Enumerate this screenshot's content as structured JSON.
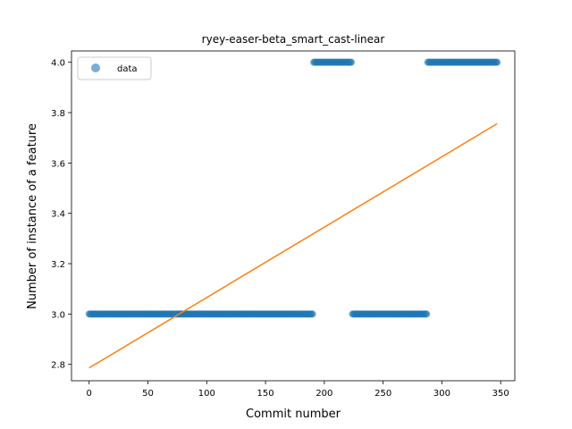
{
  "chart_data": {
    "type": "scatter",
    "title": "ryey-easer-beta_smart_cast-linear",
    "xlabel": "Commit number",
    "ylabel": "Number of instance of a feature",
    "xlim": [
      -15,
      362
    ],
    "ylim": [
      2.735,
      4.045
    ],
    "xticks": [
      0,
      50,
      100,
      150,
      200,
      250,
      300,
      350
    ],
    "yticks": [
      2.8,
      3.0,
      3.2,
      3.4,
      3.6,
      3.8,
      4.0
    ],
    "ytick_labels": [
      "2.8",
      "3.0",
      "3.2",
      "3.4",
      "3.6",
      "3.8",
      "4.0"
    ],
    "grid": false,
    "legend": {
      "position": "upper-left",
      "entries": [
        "data"
      ]
    },
    "data_color": "#1f77b4",
    "fit_color": "#ff7f0e",
    "data_segments": [
      {
        "x_start": 0,
        "x_end": 190,
        "y": 3.0
      },
      {
        "x_start": 191,
        "x_end": 223,
        "y": 4.0
      },
      {
        "x_start": 224,
        "x_end": 287,
        "y": 3.0
      },
      {
        "x_start": 288,
        "x_end": 347,
        "y": 4.0
      }
    ],
    "fit_line": {
      "x": [
        0,
        347
      ],
      "y": [
        2.786,
        3.756
      ]
    }
  }
}
